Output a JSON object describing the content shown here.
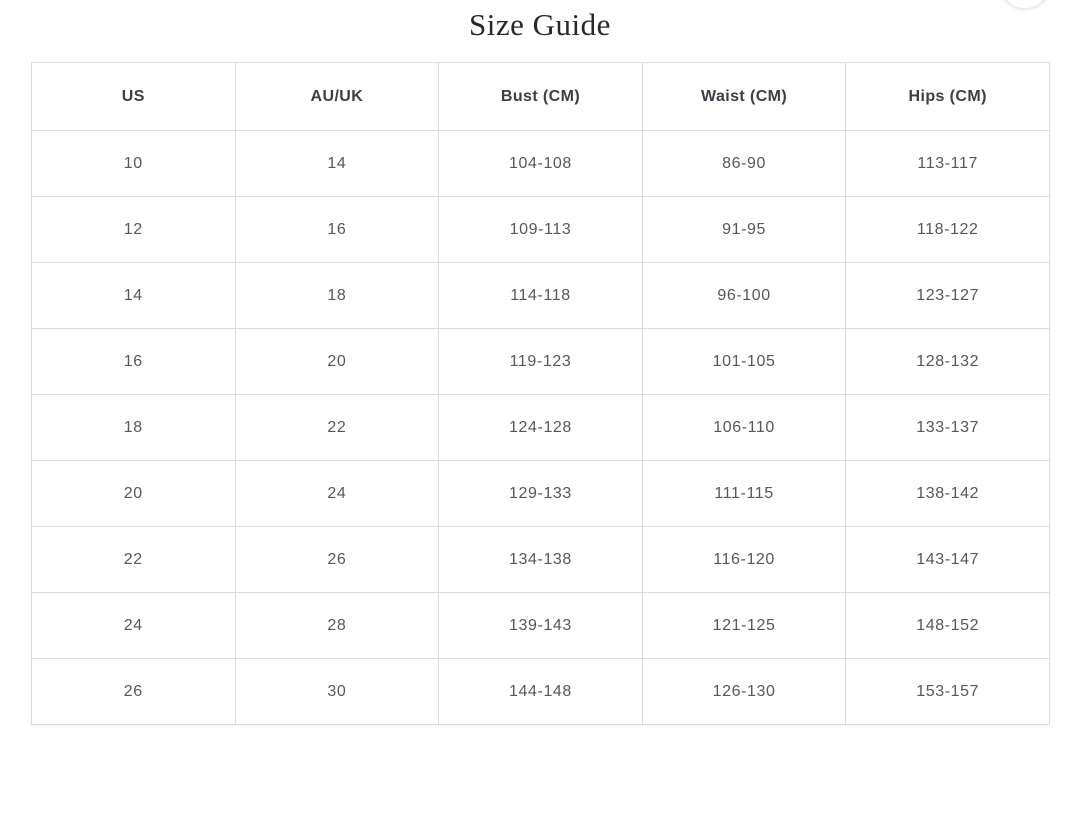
{
  "page": {
    "title": "Size Guide"
  },
  "colors": {
    "table_border": "#dcdcdc",
    "header_text": "#3b3e44",
    "cell_text": "#54575b",
    "title_text": "#26282b",
    "background": "#ffffff"
  },
  "table": {
    "headers": [
      "US",
      "AU/UK",
      "Bust (CM)",
      "Waist (CM)",
      "Hips (CM)"
    ],
    "rows": [
      [
        "10",
        "14",
        "104-108",
        "86-90",
        "113-117"
      ],
      [
        "12",
        "16",
        "109-113",
        "91-95",
        "118-122"
      ],
      [
        "14",
        "18",
        "114-118",
        "96-100",
        "123-127"
      ],
      [
        "16",
        "20",
        "119-123",
        "101-105",
        "128-132"
      ],
      [
        "18",
        "22",
        "124-128",
        "106-110",
        "133-137"
      ],
      [
        "20",
        "24",
        "129-133",
        "111-115",
        "138-142"
      ],
      [
        "22",
        "26",
        "134-138",
        "116-120",
        "143-147"
      ],
      [
        "24",
        "28",
        "139-143",
        "121-125",
        "148-152"
      ],
      [
        "26",
        "30",
        "144-148",
        "126-130",
        "153-157"
      ]
    ]
  }
}
